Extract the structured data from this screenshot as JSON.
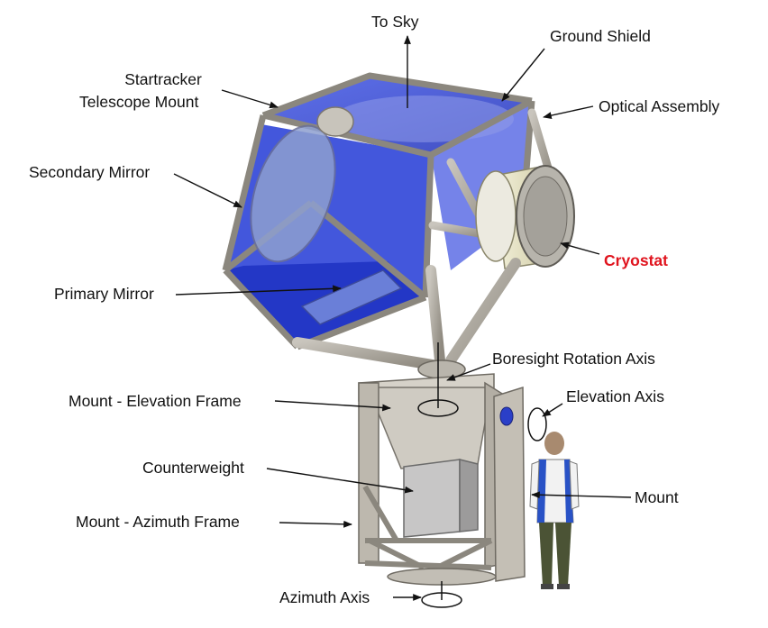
{
  "labels": {
    "to_sky": "To Sky",
    "ground_shield": "Ground Shield",
    "startracker_line1": "Startracker",
    "startracker_line2": "Telescope Mount",
    "optical_assembly": "Optical Assembly",
    "secondary_mirror": "Secondary Mirror",
    "cryostat": "Cryostat",
    "primary_mirror": "Primary Mirror",
    "boresight_rotation_axis": "Boresight Rotation Axis",
    "mount_elevation_frame": "Mount - Elevation Frame",
    "elevation_axis": "Elevation Axis",
    "counterweight": "Counterweight",
    "mount": "Mount",
    "mount_azimuth_frame": "Mount - Azimuth Frame",
    "azimuth_axis": "Azimuth Axis"
  },
  "colors": {
    "shield_blue": "#2f45d8",
    "frame_steel": "#9a958c",
    "cryostat_cream": "#e8e5c6",
    "cryostat_label": "#e0141e"
  }
}
